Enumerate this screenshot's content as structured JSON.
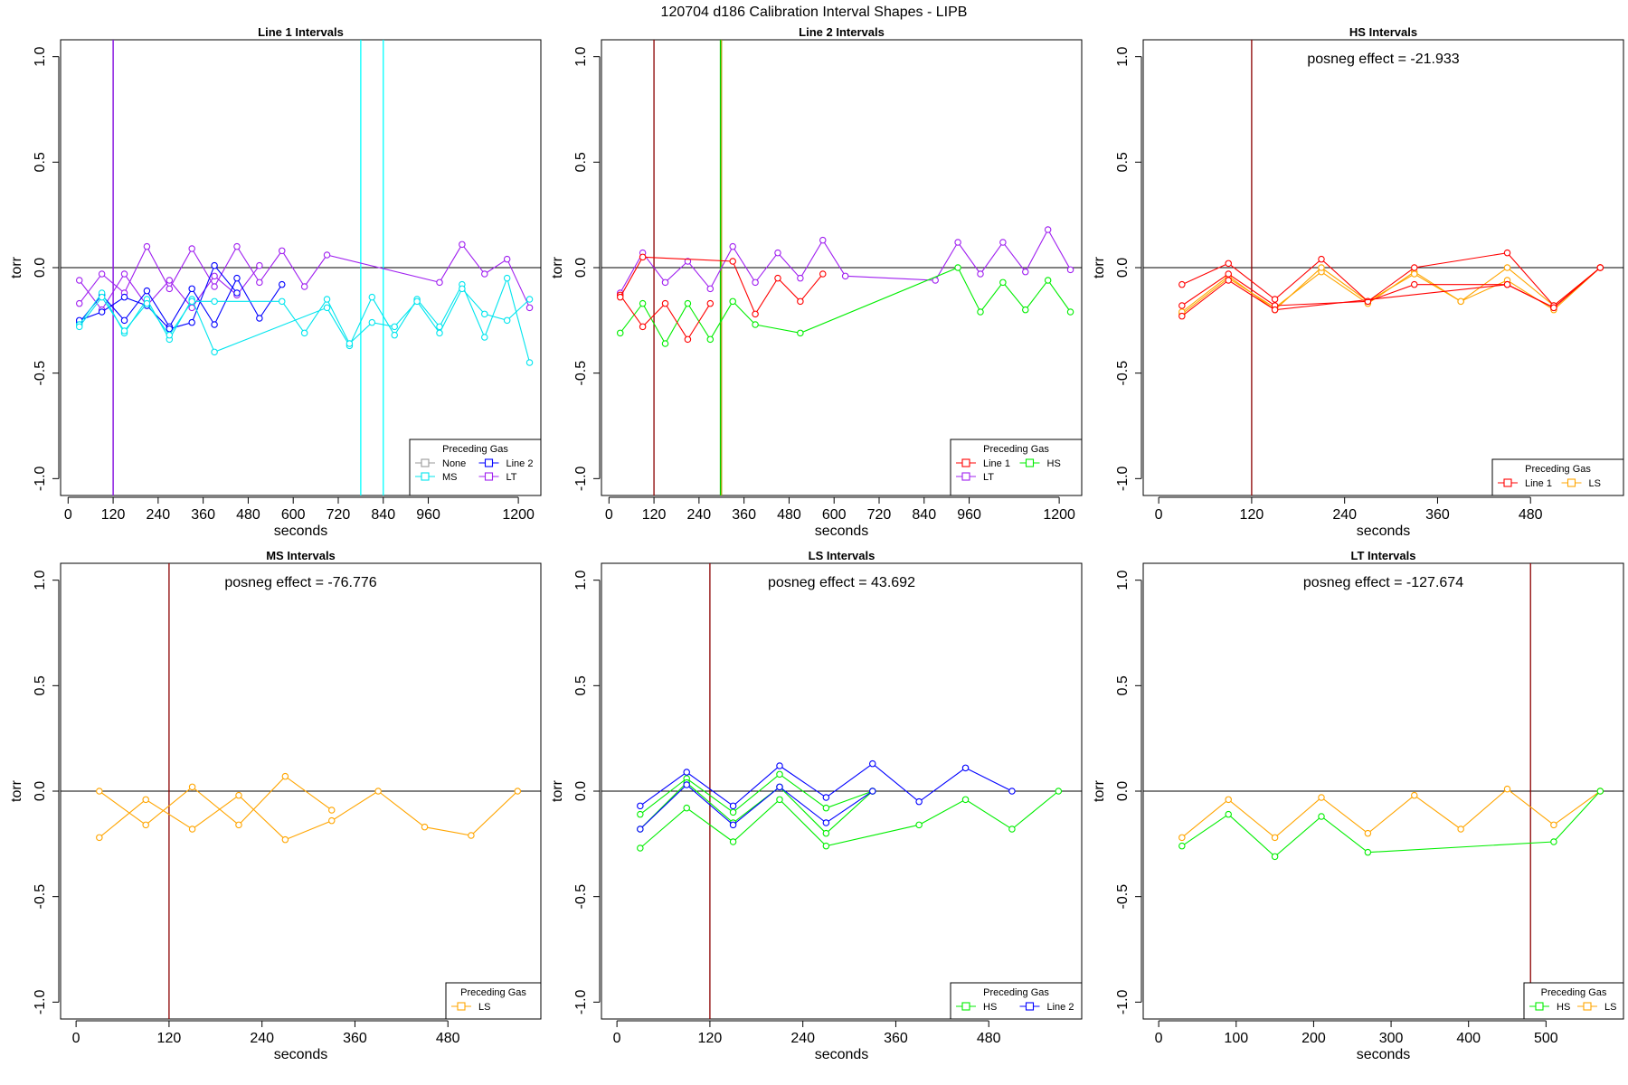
{
  "figure_title": "120704   d186   Calibration Interval Shapes - LIPB",
  "chart_data": [
    {
      "type": "line",
      "title": "Line 1 Intervals",
      "xlabel": "seconds",
      "ylabel": "torr",
      "xlim": [
        -20,
        1260
      ],
      "ylim": [
        -1.08,
        1.08
      ],
      "xticks": [
        0,
        120,
        240,
        360,
        480,
        600,
        720,
        840,
        960,
        1200
      ],
      "yticks": [
        -1.0,
        -0.5,
        0.0,
        0.5,
        1.0
      ],
      "ytick_labels": [
        "-1.0",
        "-0.5",
        "0.0",
        "0.5",
        "1.0"
      ],
      "annotation": "",
      "vlines": [
        {
          "x": 120,
          "color": "#000080"
        },
        {
          "x": 120,
          "color": "#a020f0"
        },
        {
          "x": 780,
          "color": "#00ffff"
        },
        {
          "x": 840,
          "color": "#00ffff"
        }
      ],
      "legend": {
        "title": "Preceding Gas",
        "position": "bottom-right",
        "columns": 2,
        "entries": [
          {
            "label": "None",
            "color": "#999999"
          },
          {
            "label": "Line 2",
            "color": "#0000ff"
          },
          {
            "label": "MS",
            "color": "#00e5ee"
          },
          {
            "label": "LT",
            "color": "#a020f0"
          }
        ]
      },
      "series": [
        {
          "name": "LT",
          "color": "#a020f0",
          "x": [
            30,
            90,
            150,
            210,
            270,
            330,
            390,
            450,
            510,
            570,
            630,
            690,
            990,
            1050,
            1110,
            1170,
            1230
          ],
          "y": [
            -0.17,
            -0.03,
            -0.12,
            0.1,
            -0.1,
            0.09,
            -0.09,
            0.1,
            -0.07,
            0.08,
            -0.09,
            0.06,
            -0.07,
            0.11,
            -0.03,
            0.04,
            -0.19
          ]
        },
        {
          "name": "LT",
          "color": "#a020f0",
          "x": [
            30,
            90,
            150,
            210,
            270,
            330,
            390,
            450,
            510
          ],
          "y": [
            -0.06,
            -0.2,
            -0.03,
            -0.18,
            -0.06,
            -0.19,
            -0.04,
            -0.13,
            0.01
          ]
        },
        {
          "name": "Line 2",
          "color": "#0000ff",
          "x": [
            30,
            90,
            150,
            210,
            270,
            330,
            390,
            450,
            510,
            570
          ],
          "y": [
            -0.26,
            -0.13,
            -0.25,
            -0.11,
            -0.28,
            -0.1,
            -0.27,
            -0.05,
            -0.24,
            -0.08
          ]
        },
        {
          "name": "Line 2",
          "color": "#0000ff",
          "x": [
            30,
            90,
            150,
            210,
            270,
            330,
            390,
            450
          ],
          "y": [
            -0.25,
            -0.21,
            -0.14,
            -0.18,
            -0.29,
            -0.26,
            0.01,
            -0.12
          ]
        },
        {
          "name": "MS",
          "color": "#00e5ee",
          "x": [
            30,
            90,
            150,
            210,
            270,
            330,
            390,
            690,
            750,
            810,
            870,
            930,
            990,
            1050,
            1110,
            1170,
            1230
          ],
          "y": [
            -0.27,
            -0.12,
            -0.31,
            -0.15,
            -0.34,
            -0.15,
            -0.4,
            -0.19,
            -0.37,
            -0.14,
            -0.32,
            -0.15,
            -0.28,
            -0.08,
            -0.33,
            -0.05,
            -0.45
          ]
        },
        {
          "name": "MS",
          "color": "#00e5ee",
          "x": [
            30,
            90,
            150,
            210,
            270,
            330,
            390,
            570,
            630,
            690,
            750,
            810,
            870,
            930,
            990,
            1050,
            1110,
            1170,
            1230
          ],
          "y": [
            -0.28,
            -0.14,
            -0.3,
            -0.17,
            -0.32,
            -0.16,
            -0.16,
            -0.16,
            -0.31,
            -0.15,
            -0.36,
            -0.26,
            -0.28,
            -0.16,
            -0.31,
            -0.1,
            -0.22,
            -0.25,
            -0.15
          ]
        }
      ]
    },
    {
      "type": "line",
      "title": "Line 2 Intervals",
      "xlabel": "seconds",
      "ylabel": "torr",
      "xlim": [
        -20,
        1260
      ],
      "ylim": [
        -1.08,
        1.08
      ],
      "xticks": [
        0,
        120,
        240,
        360,
        480,
        600,
        720,
        840,
        960,
        1200
      ],
      "yticks": [
        -1.0,
        -0.5,
        0.0,
        0.5,
        1.0
      ],
      "ytick_labels": [
        "-1.0",
        "-0.5",
        "0.0",
        "0.5",
        "1.0"
      ],
      "annotation": "",
      "vlines": [
        {
          "x": 120,
          "color": "#8b0000"
        },
        {
          "x": 297,
          "color": "#00cd00"
        },
        {
          "x": 300,
          "color": "#a0a000"
        }
      ],
      "legend": {
        "title": "Preceding Gas",
        "position": "bottom-right",
        "columns": 2,
        "entries": [
          {
            "label": "Line 1",
            "color": "#ff0000"
          },
          {
            "label": "HS",
            "color": "#00ee00"
          },
          {
            "label": "LT",
            "color": "#a020f0"
          }
        ]
      },
      "series": [
        {
          "name": "LT",
          "color": "#a020f0",
          "x": [
            30,
            90,
            150,
            210,
            270,
            330,
            390,
            450,
            510,
            570,
            630,
            870,
            930,
            990,
            1050,
            1110,
            1170,
            1230
          ],
          "y": [
            -0.12,
            0.07,
            -0.07,
            0.03,
            -0.1,
            0.1,
            -0.07,
            0.07,
            -0.05,
            0.13,
            -0.04,
            -0.06,
            0.12,
            -0.03,
            0.12,
            -0.02,
            0.18,
            -0.01
          ]
        },
        {
          "name": "HS",
          "color": "#00ee00",
          "x": [
            30,
            90,
            150,
            210,
            270,
            330,
            390,
            510,
            930,
            990,
            1050,
            1110,
            1170,
            1230
          ],
          "y": [
            -0.31,
            -0.17,
            -0.36,
            -0.17,
            -0.34,
            -0.16,
            -0.27,
            -0.31,
            0.0,
            -0.21,
            -0.07,
            -0.2,
            -0.06,
            -0.21
          ]
        },
        {
          "name": "Line 1",
          "color": "#ff0000",
          "x": [
            30,
            90,
            150,
            210,
            270
          ],
          "y": [
            -0.13,
            -0.28,
            -0.17,
            -0.34,
            -0.17
          ]
        },
        {
          "name": "Line 1",
          "color": "#ff0000",
          "x": [
            30,
            90,
            330,
            390,
            450,
            510,
            570
          ],
          "y": [
            -0.14,
            0.05,
            0.03,
            -0.22,
            -0.05,
            -0.16,
            -0.03
          ]
        }
      ]
    },
    {
      "type": "line",
      "title": "HS Intervals",
      "xlabel": "seconds",
      "ylabel": "torr",
      "xlim": [
        -20,
        600
      ],
      "ylim": [
        -1.08,
        1.08
      ],
      "xticks": [
        0,
        120,
        240,
        360,
        480
      ],
      "yticks": [
        -1.0,
        -0.5,
        0.0,
        0.5,
        1.0
      ],
      "ytick_labels": [
        "-1.0",
        "-0.5",
        "0.0",
        "0.5",
        "1.0"
      ],
      "annotation": "posneg effect = -21.933",
      "vlines": [
        {
          "x": 120,
          "color": "#8b0000"
        }
      ],
      "legend": {
        "title": "Preceding Gas",
        "position": "bottom-right",
        "columns": 2,
        "entries": [
          {
            "label": "Line 1",
            "color": "#ff0000"
          },
          {
            "label": "LS",
            "color": "#ffa500"
          }
        ]
      },
      "series": [
        {
          "name": "LS",
          "color": "#ffa500",
          "x": [
            30,
            90,
            150,
            210,
            270,
            330,
            390,
            450,
            510,
            570
          ],
          "y": [
            -0.22,
            -0.05,
            -0.19,
            -0.02,
            -0.17,
            -0.02,
            -0.16,
            -0.06,
            -0.2,
            0.0
          ]
        },
        {
          "name": "LS",
          "color": "#ffa500",
          "x": [
            30,
            90,
            150,
            210,
            270,
            330,
            390,
            450,
            510,
            570
          ],
          "y": [
            -0.21,
            -0.04,
            -0.2,
            0.0,
            -0.16,
            -0.03,
            -0.16,
            0.0,
            -0.18,
            0.0
          ]
        },
        {
          "name": "Line 1",
          "color": "#ff0000",
          "x": [
            30,
            90,
            150,
            210,
            270,
            330,
            450,
            510,
            570
          ],
          "y": [
            -0.08,
            0.02,
            -0.15,
            0.04,
            -0.16,
            0.0,
            0.07,
            -0.18,
            0.0
          ]
        },
        {
          "name": "Line 1",
          "color": "#ff0000",
          "x": [
            30,
            90,
            150,
            270,
            330,
            450,
            510,
            570
          ],
          "y": [
            -0.18,
            -0.03,
            -0.18,
            -0.16,
            -0.08,
            -0.08,
            -0.19,
            0.0
          ]
        },
        {
          "name": "Line 1",
          "color": "#ff0000",
          "x": [
            30,
            90,
            150,
            450,
            510,
            570
          ],
          "y": [
            -0.23,
            -0.06,
            -0.2,
            -0.08,
            -0.19,
            0.0
          ]
        }
      ]
    },
    {
      "type": "line",
      "title": "MS Intervals",
      "xlabel": "seconds",
      "ylabel": "torr",
      "xlim": [
        -20,
        600
      ],
      "ylim": [
        -1.08,
        1.08
      ],
      "xticks": [
        0,
        120,
        240,
        360,
        480
      ],
      "yticks": [
        -1.0,
        -0.5,
        0.0,
        0.5,
        1.0
      ],
      "ytick_labels": [
        "-1.0",
        "-0.5",
        "0.0",
        "0.5",
        "1.0"
      ],
      "annotation": "posneg effect = -76.776",
      "vlines": [
        {
          "x": 120,
          "color": "#8b0000"
        }
      ],
      "legend": {
        "title": "Preceding Gas",
        "position": "bottom-right",
        "columns": 1,
        "entries": [
          {
            "label": "LS",
            "color": "#ffa500"
          }
        ]
      },
      "series": [
        {
          "name": "LS",
          "color": "#ffa500",
          "x": [
            30,
            90,
            150,
            210,
            270,
            330
          ],
          "y": [
            0.0,
            -0.16,
            0.02,
            -0.16,
            0.07,
            -0.09
          ]
        },
        {
          "name": "LS",
          "color": "#ffa500",
          "x": [
            30,
            90,
            150,
            210,
            270,
            330,
            390,
            450,
            510,
            570
          ],
          "y": [
            -0.22,
            -0.04,
            -0.18,
            -0.02,
            -0.23,
            -0.14,
            0.0,
            -0.17,
            -0.21,
            0.0
          ]
        }
      ]
    },
    {
      "type": "line",
      "title": "LS Intervals",
      "xlabel": "seconds",
      "ylabel": "torr",
      "xlim": [
        -20,
        600
      ],
      "ylim": [
        -1.08,
        1.08
      ],
      "xticks": [
        0,
        120,
        240,
        360,
        480
      ],
      "yticks": [
        -1.0,
        -0.5,
        0.0,
        0.5,
        1.0
      ],
      "ytick_labels": [
        "-1.0",
        "-0.5",
        "0.0",
        "0.5",
        "1.0"
      ],
      "annotation": "posneg effect = 43.692",
      "vlines": [
        {
          "x": 120,
          "color": "#8b0000"
        }
      ],
      "legend": {
        "title": "Preceding Gas",
        "position": "bottom-right",
        "columns": 2,
        "entries": [
          {
            "label": "HS",
            "color": "#00ee00"
          },
          {
            "label": "Line 2",
            "color": "#0000ff"
          }
        ]
      },
      "series": [
        {
          "name": "HS",
          "color": "#00ee00",
          "x": [
            30,
            90,
            150,
            210,
            270,
            330
          ],
          "y": [
            -0.11,
            0.06,
            -0.1,
            0.08,
            -0.08,
            0.0
          ]
        },
        {
          "name": "HS",
          "color": "#00ee00",
          "x": [
            30,
            90,
            150,
            210,
            270,
            330
          ],
          "y": [
            -0.18,
            0.04,
            -0.15,
            0.02,
            -0.2,
            0.0
          ]
        },
        {
          "name": "HS",
          "color": "#00ee00",
          "x": [
            30,
            90,
            150,
            210,
            270,
            390,
            450,
            510,
            570
          ],
          "y": [
            -0.27,
            -0.08,
            -0.24,
            -0.04,
            -0.26,
            -0.16,
            -0.04,
            -0.18,
            0.0
          ]
        },
        {
          "name": "Line 2",
          "color": "#0000ff",
          "x": [
            30,
            90,
            150,
            210,
            270,
            330,
            390,
            450,
            510
          ],
          "y": [
            -0.07,
            0.09,
            -0.07,
            0.12,
            -0.03,
            0.13,
            -0.05,
            0.11,
            0.0
          ]
        },
        {
          "name": "Line 2",
          "color": "#0000ff",
          "x": [
            30,
            90,
            150,
            210,
            270,
            330
          ],
          "y": [
            -0.18,
            0.03,
            -0.16,
            0.02,
            -0.15,
            0.0
          ]
        }
      ]
    },
    {
      "type": "line",
      "title": "LT Intervals",
      "xlabel": "seconds",
      "ylabel": "torr",
      "xlim": [
        -20,
        600
      ],
      "ylim": [
        -1.08,
        1.08
      ],
      "xticks": [
        0,
        100,
        200,
        300,
        400,
        500
      ],
      "yticks": [
        -1.0,
        -0.5,
        0.0,
        0.5,
        1.0
      ],
      "ytick_labels": [
        "-1.0",
        "-0.5",
        "0.0",
        "0.5",
        "1.0"
      ],
      "annotation": "posneg effect = -127.674",
      "vlines": [
        {
          "x": 480,
          "color": "#8b0000"
        }
      ],
      "legend": {
        "title": "Preceding Gas",
        "position": "bottom-right",
        "columns": 2,
        "entries": [
          {
            "label": "HS",
            "color": "#00ee00"
          },
          {
            "label": "LS",
            "color": "#ffa500"
          }
        ]
      },
      "series": [
        {
          "name": "LS",
          "color": "#ffa500",
          "x": [
            30,
            90,
            150,
            210,
            270,
            330,
            390,
            450,
            510,
            570
          ],
          "y": [
            -0.22,
            -0.04,
            -0.22,
            -0.03,
            -0.2,
            -0.02,
            -0.18,
            0.01,
            -0.16,
            0.0
          ]
        },
        {
          "name": "HS",
          "color": "#00ee00",
          "x": [
            30,
            90,
            150,
            210,
            270,
            510,
            570
          ],
          "y": [
            -0.26,
            -0.11,
            -0.31,
            -0.12,
            -0.29,
            -0.24,
            0.0
          ]
        }
      ]
    }
  ]
}
